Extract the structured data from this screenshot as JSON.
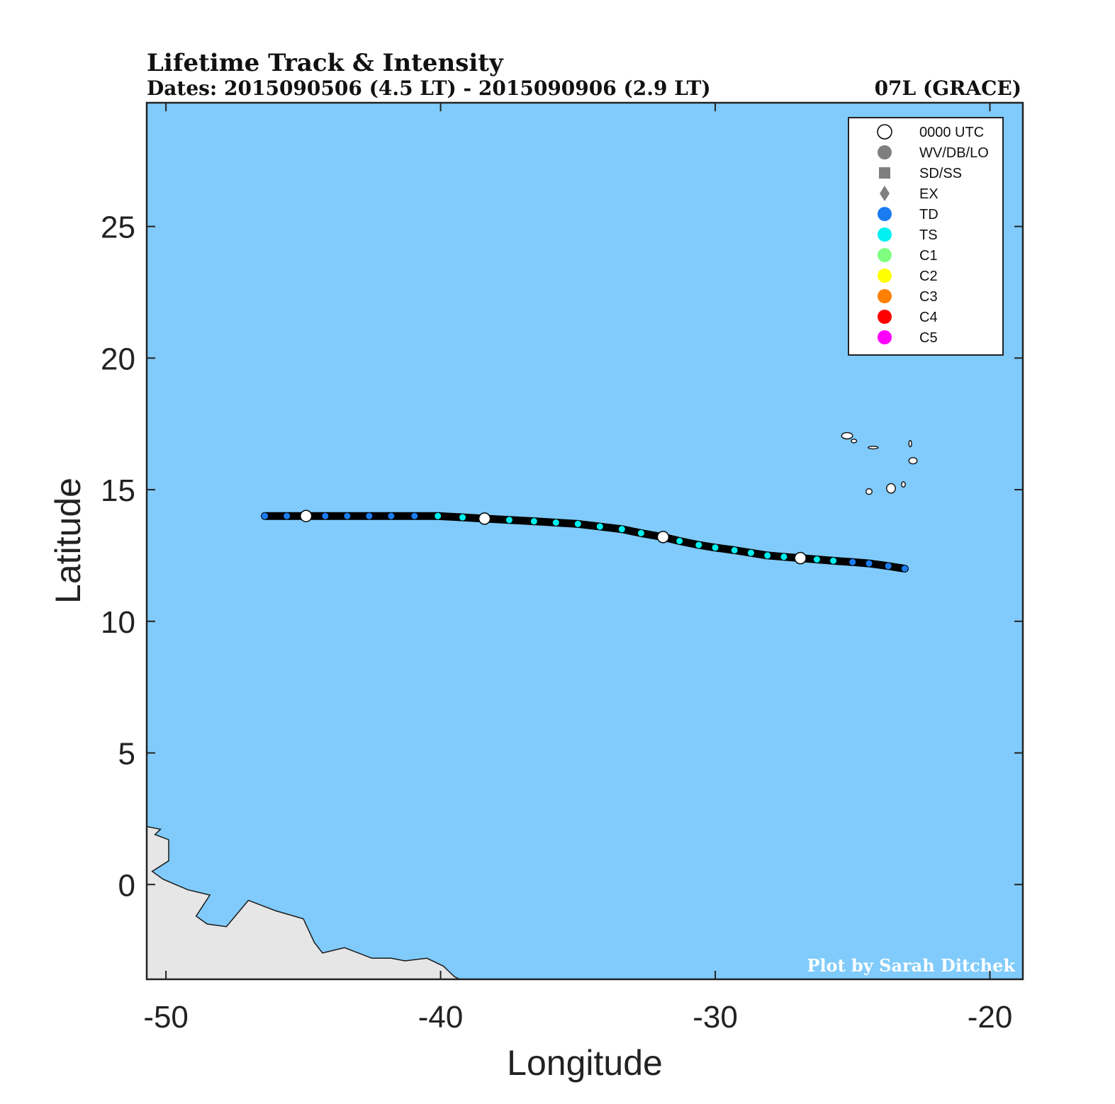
{
  "header": {
    "title": "Lifetime Track & Intensity",
    "dates": "Dates: 2015090506 (4.5 LT) - 2015090906 (2.9 LT)",
    "storm": "07L (GRACE)"
  },
  "credit": "Plot by Sarah Ditchek",
  "colors": {
    "ocean": "#80cbfb",
    "land": "#e6e6e6",
    "coast": "#1a1a1a",
    "track": "#000000",
    "TD": "#1a7cf0",
    "TS": "#00f0f0",
    "C1": "#80ff80",
    "C2": "#ffff00",
    "C3": "#ff8000",
    "C4": "#ff0000",
    "C5": "#ff00ff",
    "utc0000": "#ffffff"
  },
  "legend": {
    "items": [
      {
        "label": "0000 UTC",
        "marker": "open-circle",
        "color": "#ffffff"
      },
      {
        "label": "WV/DB/LO",
        "marker": "circle",
        "color": "#7f7f7f"
      },
      {
        "label": "SD/SS",
        "marker": "square",
        "color": "#7f7f7f"
      },
      {
        "label": "EX",
        "marker": "diamond",
        "color": "#7f7f7f"
      },
      {
        "label": "TD",
        "marker": "circle",
        "color": "#1a7cf0"
      },
      {
        "label": "TS",
        "marker": "circle",
        "color": "#00f0f0"
      },
      {
        "label": "C1",
        "marker": "circle",
        "color": "#80ff80"
      },
      {
        "label": "C2",
        "marker": "circle",
        "color": "#ffff00"
      },
      {
        "label": "C3",
        "marker": "circle",
        "color": "#ff8000"
      },
      {
        "label": "C4",
        "marker": "circle",
        "color": "#ff0000"
      },
      {
        "label": "C5",
        "marker": "circle",
        "color": "#ff00ff"
      }
    ]
  },
  "chart_data": {
    "type": "scatter",
    "title": "Lifetime Track & Intensity",
    "xlabel": "Longitude",
    "ylabel": "Latitude",
    "xlim": [
      -50.7,
      -18.8
    ],
    "ylim": [
      -3.6,
      29.7
    ],
    "xticks": [
      -50,
      -40,
      -30,
      -20
    ],
    "yticks": [
      0,
      5,
      10,
      15,
      20,
      25
    ],
    "grid": false,
    "legend_position": "top-right",
    "series": [
      {
        "name": "07L (GRACE)",
        "points": [
          {
            "lon": -46.4,
            "lat": 14.0,
            "cat": "TD"
          },
          {
            "lon": -45.6,
            "lat": 14.0,
            "cat": "TD"
          },
          {
            "lon": -44.2,
            "lat": 14.0,
            "cat": "TD"
          },
          {
            "lon": -43.4,
            "lat": 14.0,
            "cat": "TD"
          },
          {
            "lon": -42.6,
            "lat": 14.0,
            "cat": "TD"
          },
          {
            "lon": -41.8,
            "lat": 14.0,
            "cat": "TD"
          },
          {
            "lon": -40.95,
            "lat": 14.0,
            "cat": "TD"
          },
          {
            "lon": -40.1,
            "lat": 14.0,
            "cat": "TS"
          },
          {
            "lon": -39.2,
            "lat": 13.95,
            "cat": "TS"
          },
          {
            "lon": -37.5,
            "lat": 13.85,
            "cat": "TS"
          },
          {
            "lon": -36.6,
            "lat": 13.8,
            "cat": "TS"
          },
          {
            "lon": -35.8,
            "lat": 13.75,
            "cat": "TS"
          },
          {
            "lon": -35.0,
            "lat": 13.7,
            "cat": "TS"
          },
          {
            "lon": -34.2,
            "lat": 13.6,
            "cat": "TS"
          },
          {
            "lon": -33.4,
            "lat": 13.5,
            "cat": "TS"
          },
          {
            "lon": -32.7,
            "lat": 13.35,
            "cat": "TS"
          },
          {
            "lon": -31.3,
            "lat": 13.05,
            "cat": "TS"
          },
          {
            "lon": -30.6,
            "lat": 12.9,
            "cat": "TS"
          },
          {
            "lon": -30.0,
            "lat": 12.8,
            "cat": "TS"
          },
          {
            "lon": -29.3,
            "lat": 12.7,
            "cat": "TS"
          },
          {
            "lon": -28.7,
            "lat": 12.6,
            "cat": "TS"
          },
          {
            "lon": -28.1,
            "lat": 12.5,
            "cat": "TS"
          },
          {
            "lon": -27.5,
            "lat": 12.45,
            "cat": "TS"
          },
          {
            "lon": -26.3,
            "lat": 12.35,
            "cat": "TS"
          },
          {
            "lon": -25.7,
            "lat": 12.3,
            "cat": "TS"
          },
          {
            "lon": -25.0,
            "lat": 12.25,
            "cat": "TD"
          },
          {
            "lon": -24.4,
            "lat": 12.2,
            "cat": "TD"
          },
          {
            "lon": -23.7,
            "lat": 12.1,
            "cat": "TD"
          },
          {
            "lon": -23.1,
            "lat": 12.0,
            "cat": "TD"
          }
        ],
        "utc0000": [
          {
            "lon": -44.9,
            "lat": 14.0
          },
          {
            "lon": -38.4,
            "lat": 13.9
          },
          {
            "lon": -31.9,
            "lat": 13.2
          },
          {
            "lon": -26.9,
            "lat": 12.4
          }
        ]
      }
    ],
    "land": [
      {
        "name": "South America coast",
        "coords": [
          [
            -50.7,
            2.2
          ],
          [
            -50.2,
            2.1
          ],
          [
            -50.4,
            1.9
          ],
          [
            -49.9,
            1.7
          ],
          [
            -49.9,
            0.9
          ],
          [
            -50.5,
            0.5
          ],
          [
            -50.1,
            0.2
          ],
          [
            -49.2,
            -0.2
          ],
          [
            -48.4,
            -0.4
          ],
          [
            -48.9,
            -1.2
          ],
          [
            -48.5,
            -1.5
          ],
          [
            -47.8,
            -1.6
          ],
          [
            -47.0,
            -0.6
          ],
          [
            -46.0,
            -1.0
          ],
          [
            -45.0,
            -1.3
          ],
          [
            -44.6,
            -2.2
          ],
          [
            -44.3,
            -2.6
          ],
          [
            -43.5,
            -2.4
          ],
          [
            -42.5,
            -2.8
          ],
          [
            -41.8,
            -2.8
          ],
          [
            -41.3,
            -2.9
          ],
          [
            -40.5,
            -2.8
          ],
          [
            -39.9,
            -3.1
          ],
          [
            -39.5,
            -3.5
          ],
          [
            -39.3,
            -3.6
          ],
          [
            -50.7,
            -3.6
          ]
        ]
      }
    ],
    "islands": [
      {
        "name": "Santo Antão",
        "lon": -25.2,
        "lat": 17.05,
        "rx": 0.2,
        "ry": 0.12
      },
      {
        "name": "São Vicente",
        "lon": -24.95,
        "lat": 16.85,
        "rx": 0.1,
        "ry": 0.07
      },
      {
        "name": "São Nicolau",
        "lon": -24.25,
        "lat": 16.6,
        "rx": 0.18,
        "ry": 0.05
      },
      {
        "name": "Sal",
        "lon": -22.9,
        "lat": 16.75,
        "rx": 0.05,
        "ry": 0.12
      },
      {
        "name": "Boa Vista",
        "lon": -22.8,
        "lat": 16.1,
        "rx": 0.15,
        "ry": 0.12
      },
      {
        "name": "Maio",
        "lon": -23.15,
        "lat": 15.2,
        "rx": 0.07,
        "ry": 0.1
      },
      {
        "name": "Santiago",
        "lon": -23.6,
        "lat": 15.05,
        "rx": 0.16,
        "ry": 0.18
      },
      {
        "name": "Fogo",
        "lon": -24.4,
        "lat": 14.93,
        "rx": 0.11,
        "ry": 0.11
      }
    ]
  }
}
